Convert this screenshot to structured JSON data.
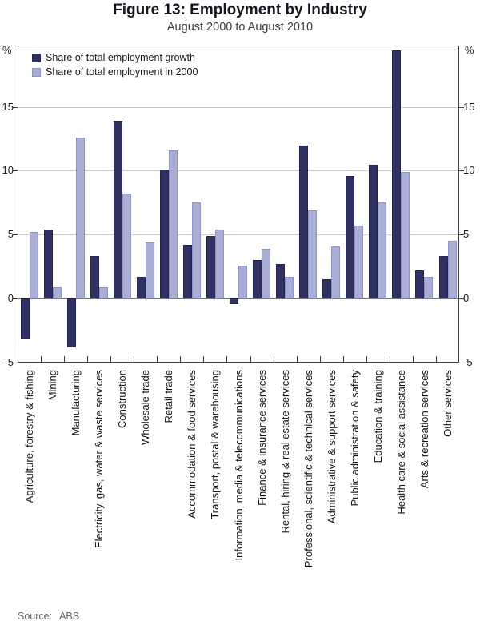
{
  "chart_data": {
    "type": "bar",
    "title": "Figure 13: Employment by Industry",
    "subtitle": "August 2000 to August 2010",
    "unit_label": "%",
    "ylim": [
      -5,
      19.8
    ],
    "yticks": [
      15,
      10,
      5,
      0,
      -5
    ],
    "grid": "horizontal",
    "legend_position": "top-left",
    "categories": [
      "Agriculture, forestry & fishing",
      "Mining",
      "Manufacturing",
      "Electricity, gas, water & waste services",
      "Construction",
      "Wholesale trade",
      "Retail trade",
      "Accommodation & food services",
      "Transport, postal & warehousing",
      "Information, media & telecommunications",
      "Finance & insurance services",
      "Rental, hiring & real estate services",
      "Professional, scientific & technical services",
      "Administrative & support services",
      "Public administration & safety",
      "Education & training",
      "Health care & social assistance",
      "Arts & recreation services",
      "Other services"
    ],
    "series": [
      {
        "name": "Share of total employment growth",
        "color": "#2e3162",
        "values": [
          -3.2,
          5.4,
          -3.8,
          3.3,
          13.9,
          1.7,
          10.1,
          4.2,
          4.9,
          -0.4,
          3.0,
          2.7,
          12.0,
          1.5,
          9.6,
          10.5,
          19.4,
          2.2,
          3.3
        ]
      },
      {
        "name": "Share of total employment in 2000",
        "color": "#a9aed7",
        "values": [
          5.2,
          0.9,
          12.6,
          0.9,
          8.2,
          4.4,
          11.6,
          7.5,
          5.4,
          2.6,
          3.9,
          1.7,
          6.9,
          4.1,
          5.7,
          7.5,
          9.9,
          1.7,
          4.5
        ]
      }
    ],
    "source_label": "Source:",
    "source_value": "ABS"
  }
}
